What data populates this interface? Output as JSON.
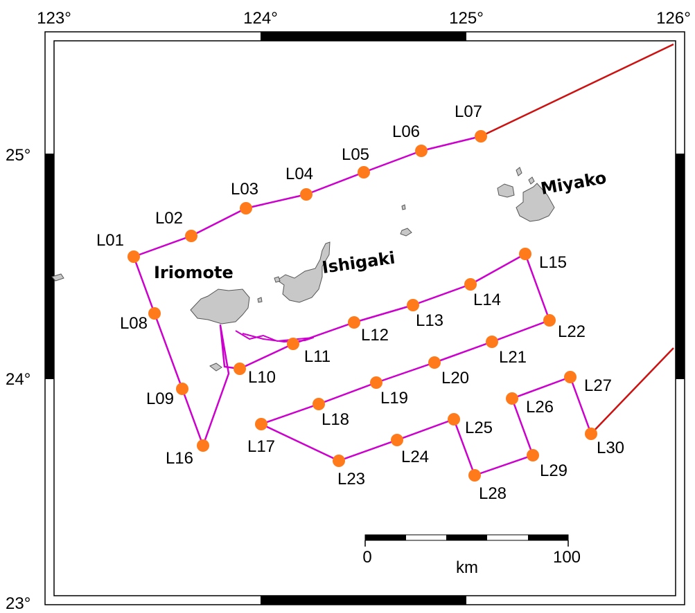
{
  "map": {
    "lon_ticks": [
      "123°",
      "124°",
      "125°",
      "126°"
    ],
    "lat_ticks": [
      "25°",
      "24°",
      "23°"
    ],
    "islands": [
      {
        "id": "iriomote",
        "label": "Iriomote"
      },
      {
        "id": "ishigaki",
        "label": "Ishigaki"
      },
      {
        "id": "miyako",
        "label": "Miyako"
      }
    ],
    "stations": [
      "L01",
      "L02",
      "L03",
      "L04",
      "L05",
      "L06",
      "L07",
      "L08",
      "L09",
      "L10",
      "L11",
      "L12",
      "L13",
      "L14",
      "L15",
      "L16",
      "L17",
      "L18",
      "L19",
      "L20",
      "L21",
      "L22",
      "L23",
      "L24",
      "L25",
      "L26",
      "L27",
      "L28",
      "L29",
      "L30"
    ],
    "scale_bar": {
      "labels": [
        "0",
        "100"
      ],
      "unit": "km"
    },
    "colors": {
      "station": "#ff7a1a",
      "survey_track": "#cc00cc",
      "transit_track": "#cc1111",
      "land": "#c8c8c8"
    }
  }
}
